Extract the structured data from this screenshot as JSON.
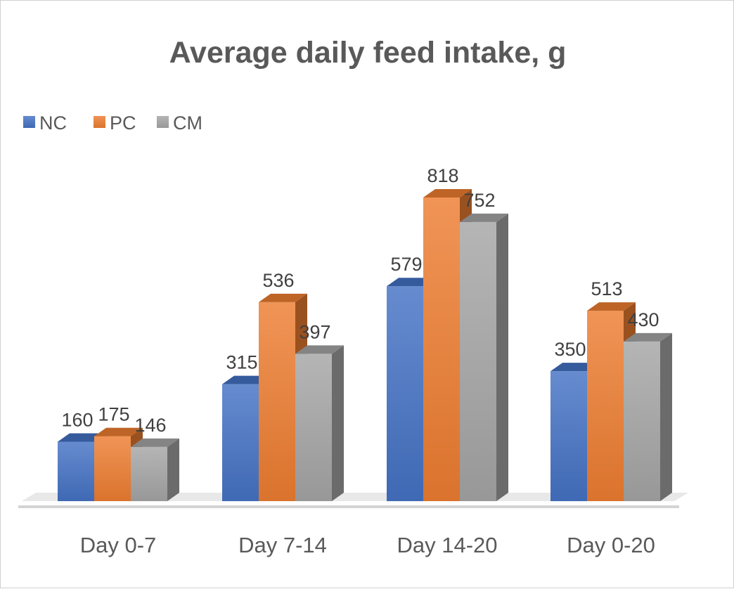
{
  "chart_data": {
    "type": "bar",
    "title": "Average daily feed intake, g",
    "xlabel": "",
    "ylabel": "",
    "categories": [
      "Day 0-7",
      "Day 7-14",
      "Day 14-20",
      "Day 0-20"
    ],
    "series": [
      {
        "name": "NC",
        "values": [
          160,
          315,
          579,
          350
        ],
        "color": "#4472c4"
      },
      {
        "name": "PC",
        "values": [
          175,
          536,
          818,
          513
        ],
        "color": "#ed7d31"
      },
      {
        "name": "CM",
        "values": [
          146,
          397,
          752,
          430
        ],
        "color": "#a5a5a5"
      }
    ],
    "ylim": [
      0,
      818
    ],
    "legend_position": "top-left",
    "grid": false,
    "style": "3d-clustered-column",
    "data_labels": true
  }
}
